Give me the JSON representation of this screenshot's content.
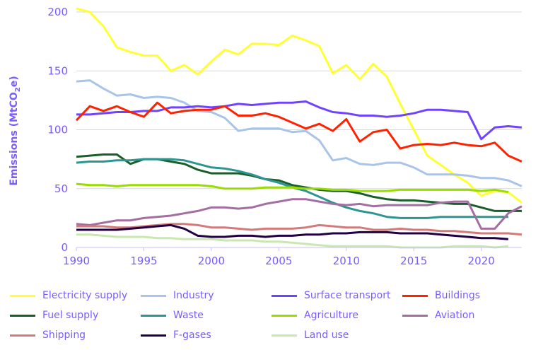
{
  "chart_data": {
    "type": "line",
    "title": "",
    "xlabel": "",
    "ylabel": "Emissions (MtCO2e)",
    "ylabel_parts": {
      "pre": "Emissions (MtCO",
      "sub": "2",
      "post": "e)"
    },
    "xlim": [
      1990,
      2023
    ],
    "ylim": [
      0,
      200
    ],
    "xticks": [
      1990,
      1995,
      2000,
      2005,
      2010,
      2015,
      2020
    ],
    "yticks": [
      0,
      50,
      100,
      150,
      200
    ],
    "grid": "horizontal",
    "legend_position": "bottom",
    "x_start": 1990,
    "series": [
      {
        "name": "Electricity supply",
        "color": "#ffff33",
        "values": [
          203,
          200,
          188,
          170,
          166,
          163,
          163,
          150,
          155,
          147,
          158,
          168,
          164,
          173,
          173,
          172,
          180,
          176,
          171,
          148,
          155,
          143,
          156,
          145,
          122,
          100,
          78,
          70,
          62,
          55,
          44,
          48,
          47,
          38
        ]
      },
      {
        "name": "Industry",
        "color": "#a9c4ea",
        "values": [
          141,
          142,
          135,
          129,
          130,
          127,
          128,
          127,
          123,
          116,
          115,
          110,
          99,
          101,
          101,
          101,
          98,
          99,
          91,
          74,
          76,
          71,
          70,
          72,
          72,
          68,
          62,
          62,
          62,
          61,
          59,
          59,
          57,
          52
        ]
      },
      {
        "name": "Surface transport",
        "color": "#7043ff",
        "values": [
          113,
          113,
          114,
          115,
          115,
          116,
          116,
          119,
          119,
          120,
          119,
          120,
          122,
          121,
          122,
          123,
          123,
          124,
          119,
          115,
          114,
          112,
          112,
          111,
          112,
          114,
          117,
          117,
          116,
          115,
          92,
          102,
          103,
          102
        ]
      },
      {
        "name": "Buildings",
        "color": "#ff2200",
        "values": [
          108,
          120,
          116,
          120,
          115,
          111,
          123,
          114,
          116,
          117,
          117,
          120,
          112,
          112,
          114,
          111,
          106,
          101,
          105,
          99,
          109,
          90,
          98,
          100,
          84,
          87,
          88,
          87,
          89,
          87,
          86,
          89,
          78,
          73
        ]
      },
      {
        "name": "Fuel supply",
        "color": "#1a5e2a",
        "values": [
          77,
          78,
          79,
          79,
          71,
          75,
          75,
          73,
          71,
          66,
          63,
          63,
          63,
          61,
          58,
          57,
          53,
          51,
          49,
          48,
          48,
          46,
          43,
          41,
          40,
          40,
          39,
          38,
          37,
          37,
          34,
          31,
          31,
          31
        ]
      },
      {
        "name": "Waste",
        "color": "#2e9690",
        "values": [
          72,
          73,
          73,
          74,
          74,
          75,
          75,
          75,
          74,
          71,
          68,
          67,
          65,
          62,
          58,
          55,
          51,
          48,
          43,
          38,
          34,
          31,
          29,
          26,
          25,
          25,
          25,
          26,
          26,
          26,
          26,
          26,
          26
        ]
      },
      {
        "name": "Agriculture",
        "color": "#99dd00",
        "values": [
          54,
          53,
          53,
          52,
          53,
          53,
          53,
          53,
          53,
          53,
          52,
          50,
          50,
          50,
          51,
          51,
          51,
          50,
          50,
          49,
          49,
          48,
          48,
          48,
          49,
          49,
          49,
          49,
          49,
          49,
          48,
          49,
          47
        ]
      },
      {
        "name": "Aviation",
        "color": "#a36ea1",
        "values": [
          20,
          19,
          21,
          23,
          23,
          25,
          26,
          27,
          29,
          31,
          34,
          34,
          33,
          34,
          37,
          39,
          41,
          41,
          39,
          37,
          36,
          37,
          35,
          36,
          36,
          36,
          36,
          38,
          39,
          39,
          16,
          16,
          29,
          35
        ]
      },
      {
        "name": "Shipping",
        "color": "#d47a7a",
        "values": [
          18,
          18,
          18,
          17,
          17,
          18,
          19,
          20,
          20,
          19,
          17,
          17,
          16,
          15,
          16,
          16,
          16,
          17,
          19,
          18,
          17,
          17,
          15,
          15,
          16,
          15,
          15,
          14,
          14,
          13,
          12,
          12,
          12,
          11
        ]
      },
      {
        "name": "F-gases",
        "color": "#220044",
        "values": [
          15,
          15,
          15,
          15,
          16,
          17,
          18,
          19,
          16,
          10,
          9,
          9,
          10,
          10,
          9,
          10,
          10,
          11,
          11,
          12,
          12,
          13,
          13,
          13,
          12,
          12,
          12,
          11,
          10,
          9,
          8,
          8,
          7
        ]
      },
      {
        "name": "Land use",
        "color": "#c8e8b0",
        "values": [
          11,
          11,
          10,
          9,
          9,
          9,
          8,
          8,
          7,
          7,
          7,
          6,
          6,
          6,
          5,
          5,
          4,
          3,
          2,
          1,
          1,
          1,
          1,
          1,
          0,
          0,
          0,
          0,
          1,
          1,
          1,
          0,
          1
        ]
      }
    ]
  }
}
